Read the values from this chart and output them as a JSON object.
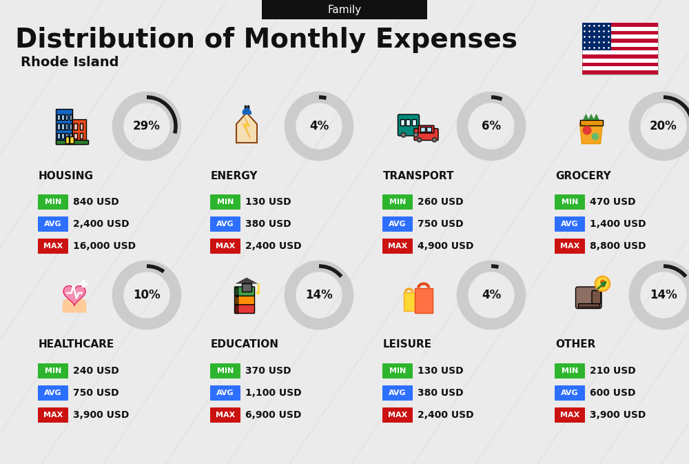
{
  "title": "Distribution of Monthly Expenses",
  "subtitle": "Rhode Island",
  "header_label": "Family",
  "bg_color": "#ebebeb",
  "categories": [
    {
      "name": "HOUSING",
      "pct": 29,
      "min": "840 USD",
      "avg": "2,400 USD",
      "max": "16,000 USD",
      "col": 0,
      "row": 0
    },
    {
      "name": "ENERGY",
      "pct": 4,
      "min": "130 USD",
      "avg": "380 USD",
      "max": "2,400 USD",
      "col": 1,
      "row": 0
    },
    {
      "name": "TRANSPORT",
      "pct": 6,
      "min": "260 USD",
      "avg": "750 USD",
      "max": "4,900 USD",
      "col": 2,
      "row": 0
    },
    {
      "name": "GROCERY",
      "pct": 20,
      "min": "470 USD",
      "avg": "1,400 USD",
      "max": "8,800 USD",
      "col": 3,
      "row": 0
    },
    {
      "name": "HEALTHCARE",
      "pct": 10,
      "min": "240 USD",
      "avg": "750 USD",
      "max": "3,900 USD",
      "col": 0,
      "row": 1
    },
    {
      "name": "EDUCATION",
      "pct": 14,
      "min": "370 USD",
      "avg": "1,100 USD",
      "max": "6,900 USD",
      "col": 1,
      "row": 1
    },
    {
      "name": "LEISURE",
      "pct": 4,
      "min": "130 USD",
      "avg": "380 USD",
      "max": "2,400 USD",
      "col": 2,
      "row": 1
    },
    {
      "name": "OTHER",
      "pct": 14,
      "min": "210 USD",
      "avg": "600 USD",
      "max": "3,900 USD",
      "col": 3,
      "row": 1
    }
  ],
  "min_color": "#2db52d",
  "avg_color": "#2d6fff",
  "max_color": "#cc1111",
  "ring_thick_color": "#cccccc",
  "ring_thin_color": "#1a1a1a",
  "title_color": "#111111",
  "bg_stripe_color": "#d8d8d8"
}
